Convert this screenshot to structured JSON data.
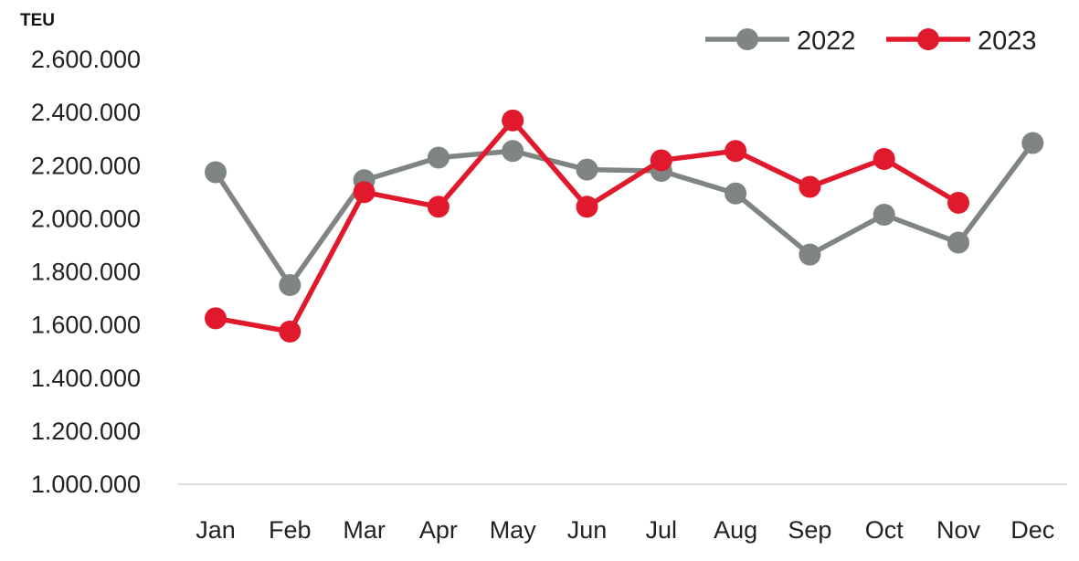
{
  "chart_data": {
    "type": "line",
    "ylabel": "TEU",
    "categories": [
      "Jan",
      "Feb",
      "Mar",
      "Apr",
      "May",
      "Jun",
      "Jul",
      "Aug",
      "Sep",
      "Oct",
      "Nov",
      "Dec"
    ],
    "ylim": [
      1000000,
      2600000
    ],
    "yticks": [
      1000000,
      1200000,
      1400000,
      1600000,
      1800000,
      2000000,
      2200000,
      2400000,
      2600000
    ],
    "ytick_labels": [
      "1.000.000",
      "1.200.000",
      "1.400.000",
      "1.600.000",
      "1.800.000",
      "2.000.000",
      "2.200.000",
      "2.400.000",
      "2.600.000"
    ],
    "grid": false,
    "legend_position": "top-right",
    "series": [
      {
        "name": "2022",
        "color": "#7f8582",
        "values": [
          2175000,
          1750000,
          2145000,
          2230000,
          2255000,
          2185000,
          2180000,
          2095000,
          1865000,
          2015000,
          1910000,
          2285000
        ]
      },
      {
        "name": "2023",
        "color": "#e0192c",
        "values": [
          1625000,
          1575000,
          2100000,
          2045000,
          2370000,
          2045000,
          2220000,
          2255000,
          2120000,
          2225000,
          2060000,
          null
        ]
      }
    ]
  }
}
